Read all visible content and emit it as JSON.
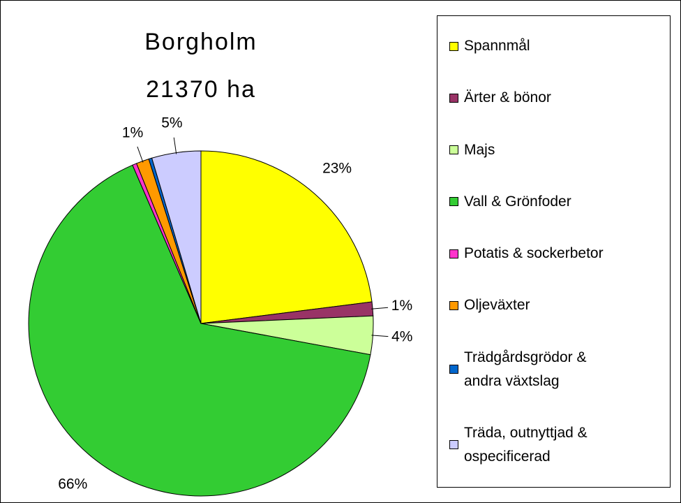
{
  "chart_data": {
    "type": "pie",
    "title": "Borgholm",
    "subtitle": "21370 ha",
    "categories": [
      "Spannmål",
      "Ärter & bönor",
      "Majs",
      "Vall & Grönfoder",
      "Potatis & sockerbetor",
      "Oljeväxter",
      "Trädgårdsgrödor & andra växtslag",
      "Träda, outnyttjad & ospecificerad"
    ],
    "values": [
      23.0,
      1.3,
      3.6,
      65.6,
      0.4,
      1.2,
      0.3,
      4.6
    ],
    "value_labels": [
      "23%",
      "1%",
      "4%",
      "66%",
      null,
      "1%",
      null,
      "5%"
    ],
    "colors": [
      "#ffff00",
      "#993366",
      "#ccff99",
      "#33cc33",
      "#ff33cc",
      "#ff9900",
      "#0066cc",
      "#ccccff"
    ],
    "legend": "right"
  }
}
